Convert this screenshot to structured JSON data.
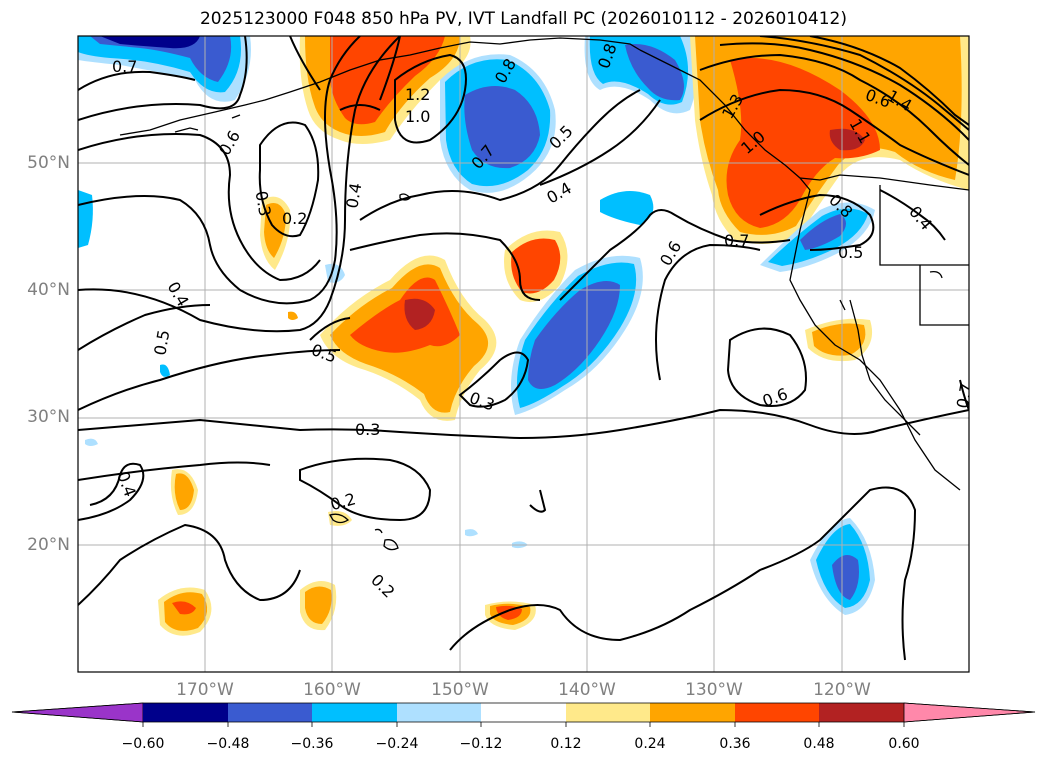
{
  "title": "2025123000 F048 850 hPa PV, IVT Landfall PC (2026010112 - 2026010412)",
  "axes": {
    "lat_labels": [
      "50°N",
      "40°N",
      "30°N",
      "20°N"
    ],
    "lon_labels": [
      "170°W",
      "160°W",
      "150°W",
      "140°W",
      "130°W",
      "120°W"
    ]
  },
  "colorbar": {
    "ticks": [
      "−0.60",
      "−0.48",
      "−0.36",
      "−0.24",
      "−0.12",
      "0.12",
      "0.24",
      "0.36",
      "0.48",
      "0.60"
    ],
    "colors": [
      "#9a34c9",
      "#00008b",
      "#3a5bd0",
      "#00bfff",
      "#aee0ff",
      "#ffffff",
      "#ffe98a",
      "#ffa500",
      "#ff4500",
      "#b22222",
      "#ff88aa"
    ]
  },
  "contour_labels": [
    "0.7",
    "0.6",
    "0.3",
    "0.2",
    "0.4",
    "1.2",
    "1.0",
    "0.8",
    "0.7",
    "0.5",
    "0.4",
    "0.8",
    "1.3",
    "1.0",
    "0.6",
    "1.4",
    "1.1",
    "0.8",
    "0.7",
    "0.5",
    "0.6",
    "0.4",
    "0.4",
    "0.5",
    "0.5",
    "0.3",
    "0.3",
    "0.2",
    "0.2",
    "0.4",
    "0.6",
    "0.7"
  ],
  "colors": {
    "neg_dark": "#3a5bd0",
    "neg_mid": "#00bfff",
    "neg_light": "#aee0ff",
    "pos_light": "#ffe98a",
    "pos_mid": "#ffa500",
    "pos_strong": "#ff4500",
    "pos_dark": "#b22222",
    "grid": "#b0b0b0",
    "tick_label": "#808080"
  }
}
